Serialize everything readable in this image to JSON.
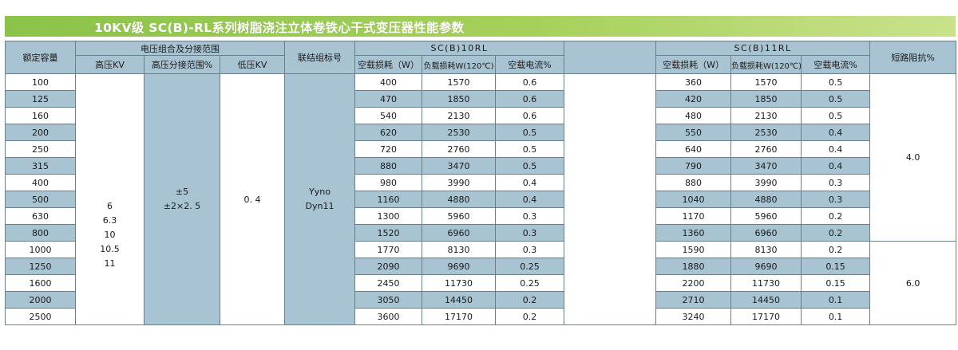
{
  "title": "10KV级 SC(B)-RL系列树脂浇注立体卷铁心干式变压器性能参数",
  "headers": {
    "rated_capacity": "额定容量",
    "voltage_group": "电压组合及分接范围",
    "hv": "高压KV",
    "tap_range": "高压分接范围%",
    "lv": "低压KV",
    "connection": "联结组标号",
    "sc10": "SC(B)10RL",
    "sc11": "SC(B)11RL",
    "no_load_loss": "空载损耗（W）",
    "load_loss": "负载损耗W(120℃)",
    "no_load_current": "空载电流%",
    "impedance": "短路阻抗%"
  },
  "merged": {
    "hv_values": [
      "6",
      "6.3",
      "10",
      "10.5",
      "11"
    ],
    "tap_values": [
      "±5",
      "±2×2. 5"
    ],
    "lv_value": "0. 4",
    "connection_values": [
      "Yyno",
      "Dyn11"
    ],
    "impedance_values": [
      "4.0",
      "6.0"
    ]
  },
  "rows": [
    {
      "rated": "100",
      "sc10": [
        "400",
        "1570",
        "0.6"
      ],
      "sc11": [
        "360",
        "1570",
        "0.5"
      ]
    },
    {
      "rated": "125",
      "sc10": [
        "470",
        "1850",
        "0.6"
      ],
      "sc11": [
        "420",
        "1850",
        "0.5"
      ]
    },
    {
      "rated": "160",
      "sc10": [
        "540",
        "2130",
        "0.6"
      ],
      "sc11": [
        "480",
        "2130",
        "0.5"
      ]
    },
    {
      "rated": "200",
      "sc10": [
        "620",
        "2530",
        "0.5"
      ],
      "sc11": [
        "550",
        "2530",
        "0.4"
      ]
    },
    {
      "rated": "250",
      "sc10": [
        "720",
        "2760",
        "0.5"
      ],
      "sc11": [
        "640",
        "2760",
        "0.4"
      ]
    },
    {
      "rated": "315",
      "sc10": [
        "880",
        "3470",
        "0.5"
      ],
      "sc11": [
        "790",
        "3470",
        "0.4"
      ]
    },
    {
      "rated": "400",
      "sc10": [
        "980",
        "3990",
        "0.4"
      ],
      "sc11": [
        "880",
        "3990",
        "0.3"
      ]
    },
    {
      "rated": "500",
      "sc10": [
        "1160",
        "4880",
        "0.4"
      ],
      "sc11": [
        "1040",
        "4880",
        "0.3"
      ]
    },
    {
      "rated": "630",
      "sc10": [
        "1300",
        "5960",
        "0.3"
      ],
      "sc11": [
        "1170",
        "5960",
        "0.2"
      ]
    },
    {
      "rated": "800",
      "sc10": [
        "1520",
        "6960",
        "0.3"
      ],
      "sc11": [
        "1360",
        "6960",
        "0.2"
      ]
    },
    {
      "rated": "1000",
      "sc10": [
        "1770",
        "8130",
        "0.3"
      ],
      "sc11": [
        "1590",
        "8130",
        "0.2"
      ]
    },
    {
      "rated": "1250",
      "sc10": [
        "2090",
        "9690",
        "0.25"
      ],
      "sc11": [
        "1880",
        "9690",
        "0.15"
      ]
    },
    {
      "rated": "1600",
      "sc10": [
        "2450",
        "11730",
        "0.25"
      ],
      "sc11": [
        "2200",
        "11730",
        "0.15"
      ]
    },
    {
      "rated": "2000",
      "sc10": [
        "3050",
        "14450",
        "0.2"
      ],
      "sc11": [
        "2710",
        "14450",
        "0.1"
      ]
    },
    {
      "rated": "2500",
      "sc10": [
        "3600",
        "17170",
        "0.2"
      ],
      "sc11": [
        "3240",
        "17170",
        "0.1"
      ]
    }
  ],
  "colors": {
    "title_green": "#8bc34a",
    "header_blue": "#a8c3d2",
    "border": "#6a7f8c"
  }
}
